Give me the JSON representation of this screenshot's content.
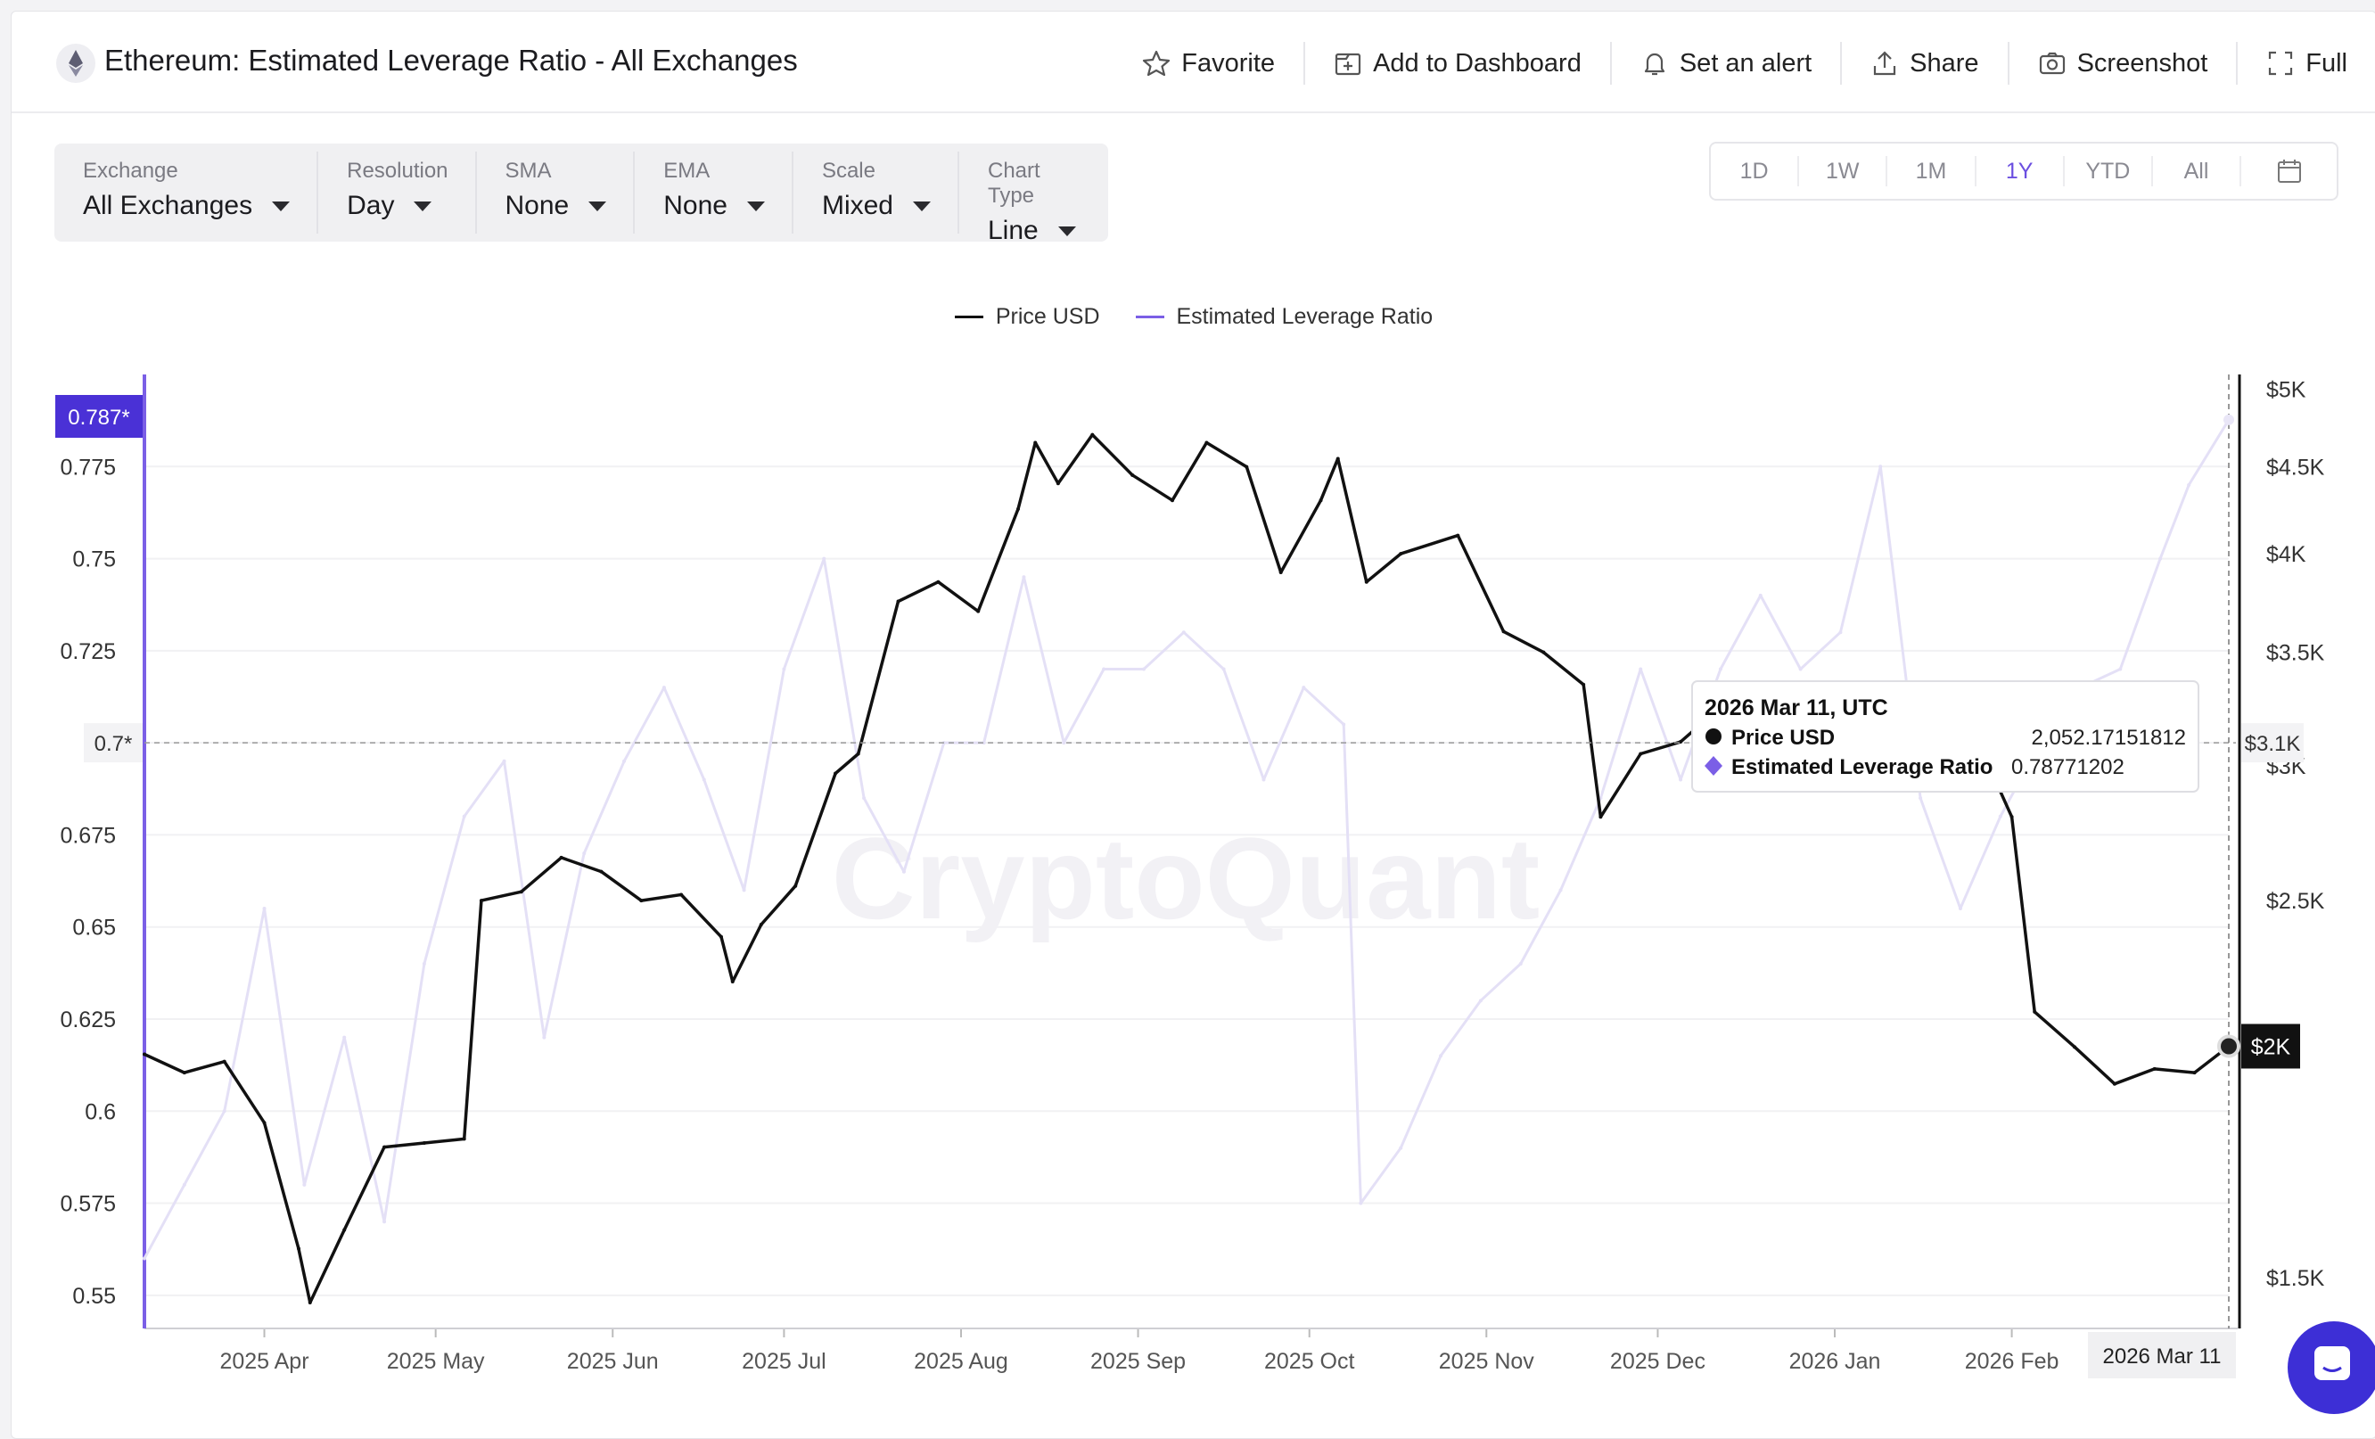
{
  "header": {
    "title": "Ethereum: Estimated Leverage Ratio - All Exchanges",
    "actions": [
      {
        "label": "Favorite",
        "icon": "star-icon"
      },
      {
        "label": "Add to Dashboard",
        "icon": "dashboard-add-icon"
      },
      {
        "label": "Set an alert",
        "icon": "bell-icon"
      },
      {
        "label": "Share",
        "icon": "share-icon"
      },
      {
        "label": "Screenshot",
        "icon": "camera-icon"
      },
      {
        "label": "Full",
        "icon": "fullscreen-icon"
      }
    ]
  },
  "filters": [
    {
      "label": "Exchange",
      "value": "All Exchanges"
    },
    {
      "label": "Resolution",
      "value": "Day"
    },
    {
      "label": "SMA",
      "value": "None"
    },
    {
      "label": "EMA",
      "value": "None"
    },
    {
      "label": "Scale",
      "value": "Mixed"
    },
    {
      "label": "Chart Type",
      "value": "Line"
    }
  ],
  "ranges": {
    "items": [
      "1D",
      "1W",
      "1M",
      "1Y",
      "YTD",
      "All"
    ],
    "active": "1Y"
  },
  "watermark": "CryptoQuant",
  "tooltip": {
    "date": "2026 Mar 11, UTC",
    "rows": [
      {
        "name": "Price USD",
        "value": "2,052.17151812"
      },
      {
        "name": "Estimated Leverage Ratio",
        "value": "0.78771202"
      }
    ]
  },
  "chart_data": {
    "type": "line",
    "colors": {
      "price": "#111111",
      "leverage": "#7b5fe6",
      "leverage_line": "#e4e0f6",
      "cursor_badge": "#4a31d6"
    },
    "x_ticks": [
      "2025 Apr",
      "2025 May",
      "2025 Jun",
      "2025 Jul",
      "2025 Aug",
      "2025 Sep",
      "2025 Oct",
      "2025 Nov",
      "2025 Dec",
      "2026 Jan",
      "2026 Feb"
    ],
    "x_range": [
      "2025-03-11",
      "2026-03-11"
    ],
    "cursor_x_label": "2026 Mar 11",
    "y_left": {
      "label": "Estimated Leverage Ratio",
      "ticks": [
        0.55,
        0.575,
        0.6,
        0.625,
        0.65,
        0.675,
        0.7,
        0.725,
        0.75,
        0.775
      ],
      "range": [
        0.541,
        0.8
      ],
      "cursor_label": "0.787*",
      "hover_label": "0.7*"
    },
    "y_right": {
      "label": "Price USD",
      "scale": "log",
      "ticks": [
        "$1.5K",
        "$2.5K",
        "$3K",
        "$3.5K",
        "$4K",
        "$4.5K",
        "$5K"
      ],
      "tick_values": [
        1500,
        2500,
        3000,
        3500,
        4000,
        4500,
        5000
      ],
      "range": [
        1400,
        5100
      ],
      "cursor_label": "$2K",
      "hover_label": "$3.1K"
    },
    "series": [
      {
        "name": "Price USD",
        "axis": "right",
        "x": [
          "2025-03-11",
          "2025-03-18",
          "2025-03-25",
          "2025-04-01",
          "2025-04-07",
          "2025-04-09",
          "2025-04-15",
          "2025-04-22",
          "2025-04-29",
          "2025-05-06",
          "2025-05-09",
          "2025-05-16",
          "2025-05-23",
          "2025-05-30",
          "2025-06-06",
          "2025-06-13",
          "2025-06-20",
          "2025-06-22",
          "2025-06-27",
          "2025-07-03",
          "2025-07-10",
          "2025-07-14",
          "2025-07-21",
          "2025-07-28",
          "2025-08-04",
          "2025-08-11",
          "2025-08-14",
          "2025-08-18",
          "2025-08-24",
          "2025-08-31",
          "2025-09-07",
          "2025-09-13",
          "2025-09-20",
          "2025-09-26",
          "2025-10-03",
          "2025-10-06",
          "2025-10-11",
          "2025-10-17",
          "2025-10-27",
          "2025-11-04",
          "2025-11-11",
          "2025-11-18",
          "2025-11-21",
          "2025-11-28",
          "2025-12-05",
          "2025-12-12",
          "2025-12-18",
          "2025-12-25",
          "2026-01-01",
          "2026-01-07",
          "2026-01-14",
          "2026-01-21",
          "2026-01-28",
          "2026-02-01",
          "2026-02-05",
          "2026-02-12",
          "2026-02-19",
          "2026-02-26",
          "2026-03-05",
          "2026-03-11"
        ],
        "values": [
          2030,
          1980,
          2010,
          1850,
          1560,
          1450,
          1600,
          1790,
          1800,
          1810,
          2500,
          2530,
          2650,
          2600,
          2500,
          2520,
          2380,
          2240,
          2420,
          2550,
          2970,
          3050,
          3750,
          3850,
          3700,
          4250,
          4650,
          4400,
          4700,
          4450,
          4300,
          4650,
          4500,
          3900,
          4300,
          4550,
          3850,
          4000,
          4100,
          3600,
          3500,
          3350,
          2800,
          3050,
          3100,
          3250,
          2950,
          2940,
          3000,
          3250,
          3350,
          3050,
          3000,
          2800,
          2150,
          2050,
          1950,
          1990,
          1980,
          2052.17
        ]
      },
      {
        "name": "Estimated Leverage Ratio",
        "axis": "left",
        "x": [
          "2025-03-11",
          "2025-03-18",
          "2025-03-25",
          "2025-04-01",
          "2025-04-08",
          "2025-04-15",
          "2025-04-22",
          "2025-04-29",
          "2025-05-06",
          "2025-05-13",
          "2025-05-20",
          "2025-05-27",
          "2025-06-03",
          "2025-06-10",
          "2025-06-17",
          "2025-06-24",
          "2025-07-01",
          "2025-07-08",
          "2025-07-15",
          "2025-07-22",
          "2025-07-29",
          "2025-08-05",
          "2025-08-12",
          "2025-08-19",
          "2025-08-26",
          "2025-09-02",
          "2025-09-09",
          "2025-09-16",
          "2025-09-23",
          "2025-09-30",
          "2025-10-07",
          "2025-10-10",
          "2025-10-17",
          "2025-10-24",
          "2025-10-31",
          "2025-11-07",
          "2025-11-14",
          "2025-11-21",
          "2025-11-28",
          "2025-12-05",
          "2025-12-12",
          "2025-12-19",
          "2025-12-26",
          "2026-01-02",
          "2026-01-09",
          "2026-01-16",
          "2026-01-23",
          "2026-01-30",
          "2026-02-06",
          "2026-02-13",
          "2026-02-20",
          "2026-02-27",
          "2026-03-04",
          "2026-03-11"
        ],
        "values": [
          0.56,
          0.58,
          0.6,
          0.655,
          0.58,
          0.62,
          0.57,
          0.64,
          0.68,
          0.695,
          0.62,
          0.67,
          0.695,
          0.715,
          0.69,
          0.66,
          0.72,
          0.75,
          0.685,
          0.665,
          0.7,
          0.7,
          0.745,
          0.7,
          0.72,
          0.72,
          0.73,
          0.72,
          0.69,
          0.715,
          0.705,
          0.575,
          0.59,
          0.615,
          0.63,
          0.64,
          0.66,
          0.685,
          0.72,
          0.69,
          0.72,
          0.74,
          0.72,
          0.73,
          0.775,
          0.685,
          0.655,
          0.68,
          0.7,
          0.715,
          0.72,
          0.75,
          0.77,
          0.7877
        ]
      }
    ]
  }
}
